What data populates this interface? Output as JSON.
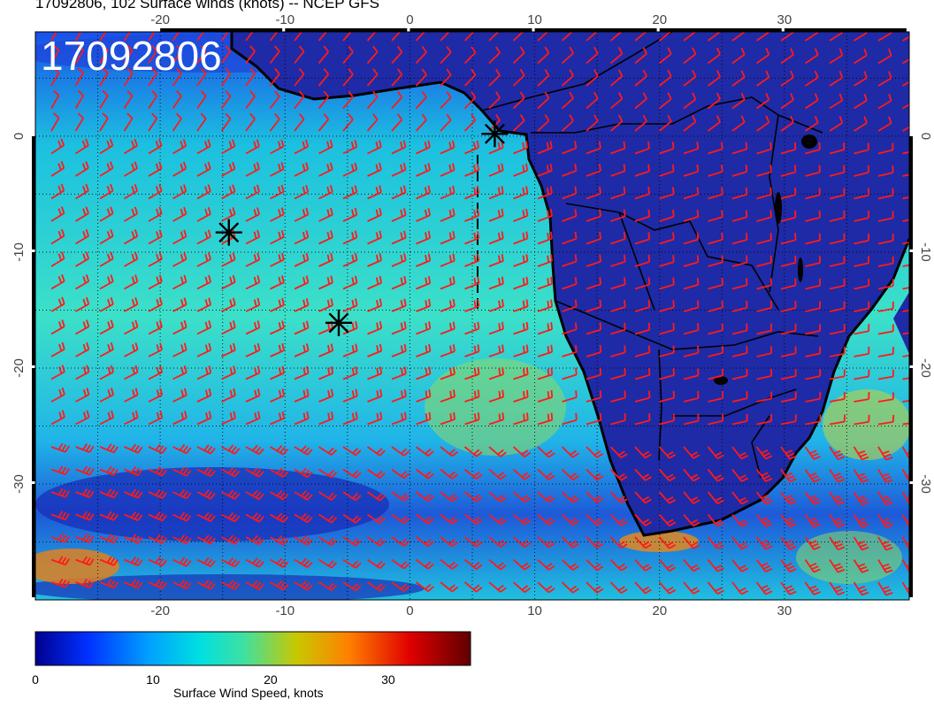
{
  "title": "17092806, 102 Surface winds (knots) -- NCEP GFS",
  "timestamp_label": "17092806",
  "map": {
    "lon_ticks": [
      "-20",
      "-10",
      "0",
      "10",
      "20",
      "30"
    ],
    "lat_ticks": [
      "0",
      "-10",
      "-20",
      "-30"
    ],
    "lon_range": [
      -30,
      40
    ],
    "lat_range": [
      -40,
      9
    ],
    "land_color": "#1e2aa8",
    "coast_color": "#000000",
    "barb_color": "#ff1a1a"
  },
  "markers": [
    {
      "name": "storm-marker-1",
      "lon": 6.8,
      "lat": 0.2
    },
    {
      "name": "storm-marker-2",
      "lon": -14.5,
      "lat": -8.3
    },
    {
      "name": "storm-marker-3",
      "lon": -5.7,
      "lat": -16.1
    }
  ],
  "colorbar": {
    "title": "Surface Wind Speed, knots",
    "ticks": [
      "0",
      "10",
      "20",
      "30"
    ],
    "tick_values": [
      0,
      10,
      20,
      30
    ],
    "range": [
      0,
      37
    ],
    "colors": [
      "#000090",
      "#0030ff",
      "#00a0ff",
      "#00e0e0",
      "#40e0a0",
      "#c8c800",
      "#ff8000",
      "#e00000",
      "#600000"
    ]
  }
}
